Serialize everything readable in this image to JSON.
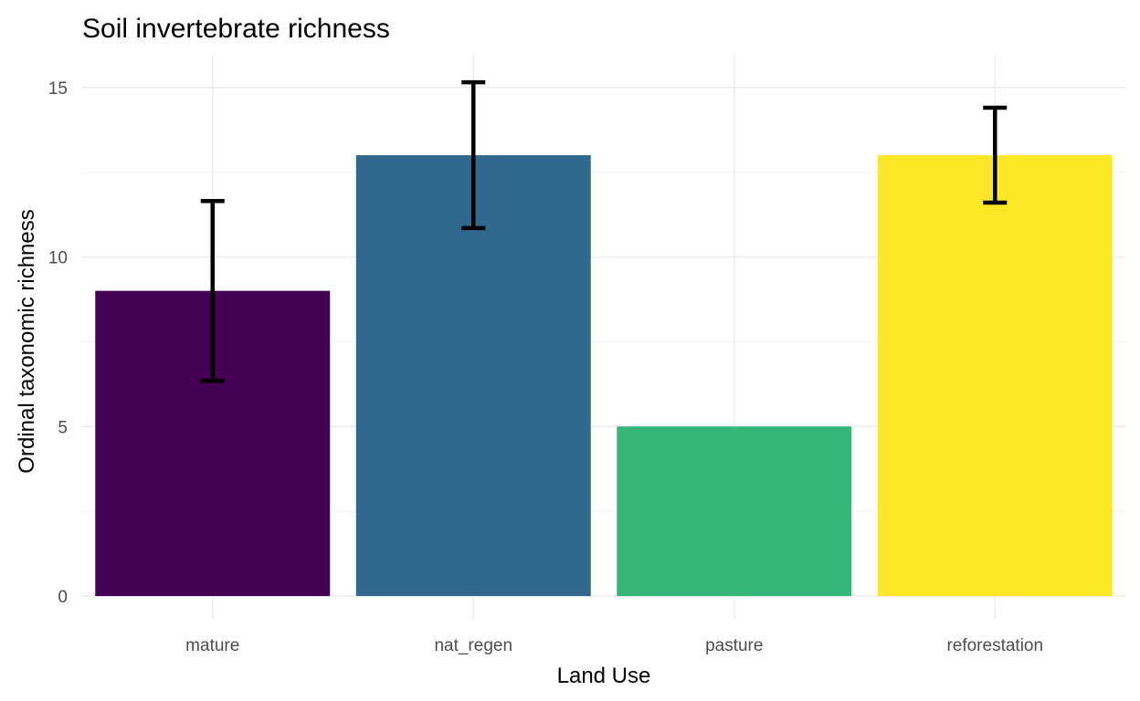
{
  "chart_data": {
    "type": "bar",
    "title": "Soil invertebrate richness",
    "xlabel": "Land Use",
    "ylabel": "Ordinal taxonomic richness",
    "categories": [
      "mature",
      "nat_regen",
      "pasture",
      "reforestation"
    ],
    "values": [
      9,
      13,
      5,
      13
    ],
    "error_lower": [
      6.35,
      10.85,
      null,
      11.6
    ],
    "error_upper": [
      11.65,
      15.15,
      null,
      14.4
    ],
    "colors": [
      "#440154",
      "#31688E",
      "#35B779",
      "#FDE725"
    ],
    "ylim": [
      0,
      15.5
    ],
    "yticks": [
      0,
      5,
      10,
      15
    ],
    "grid": true,
    "legend": "none"
  }
}
